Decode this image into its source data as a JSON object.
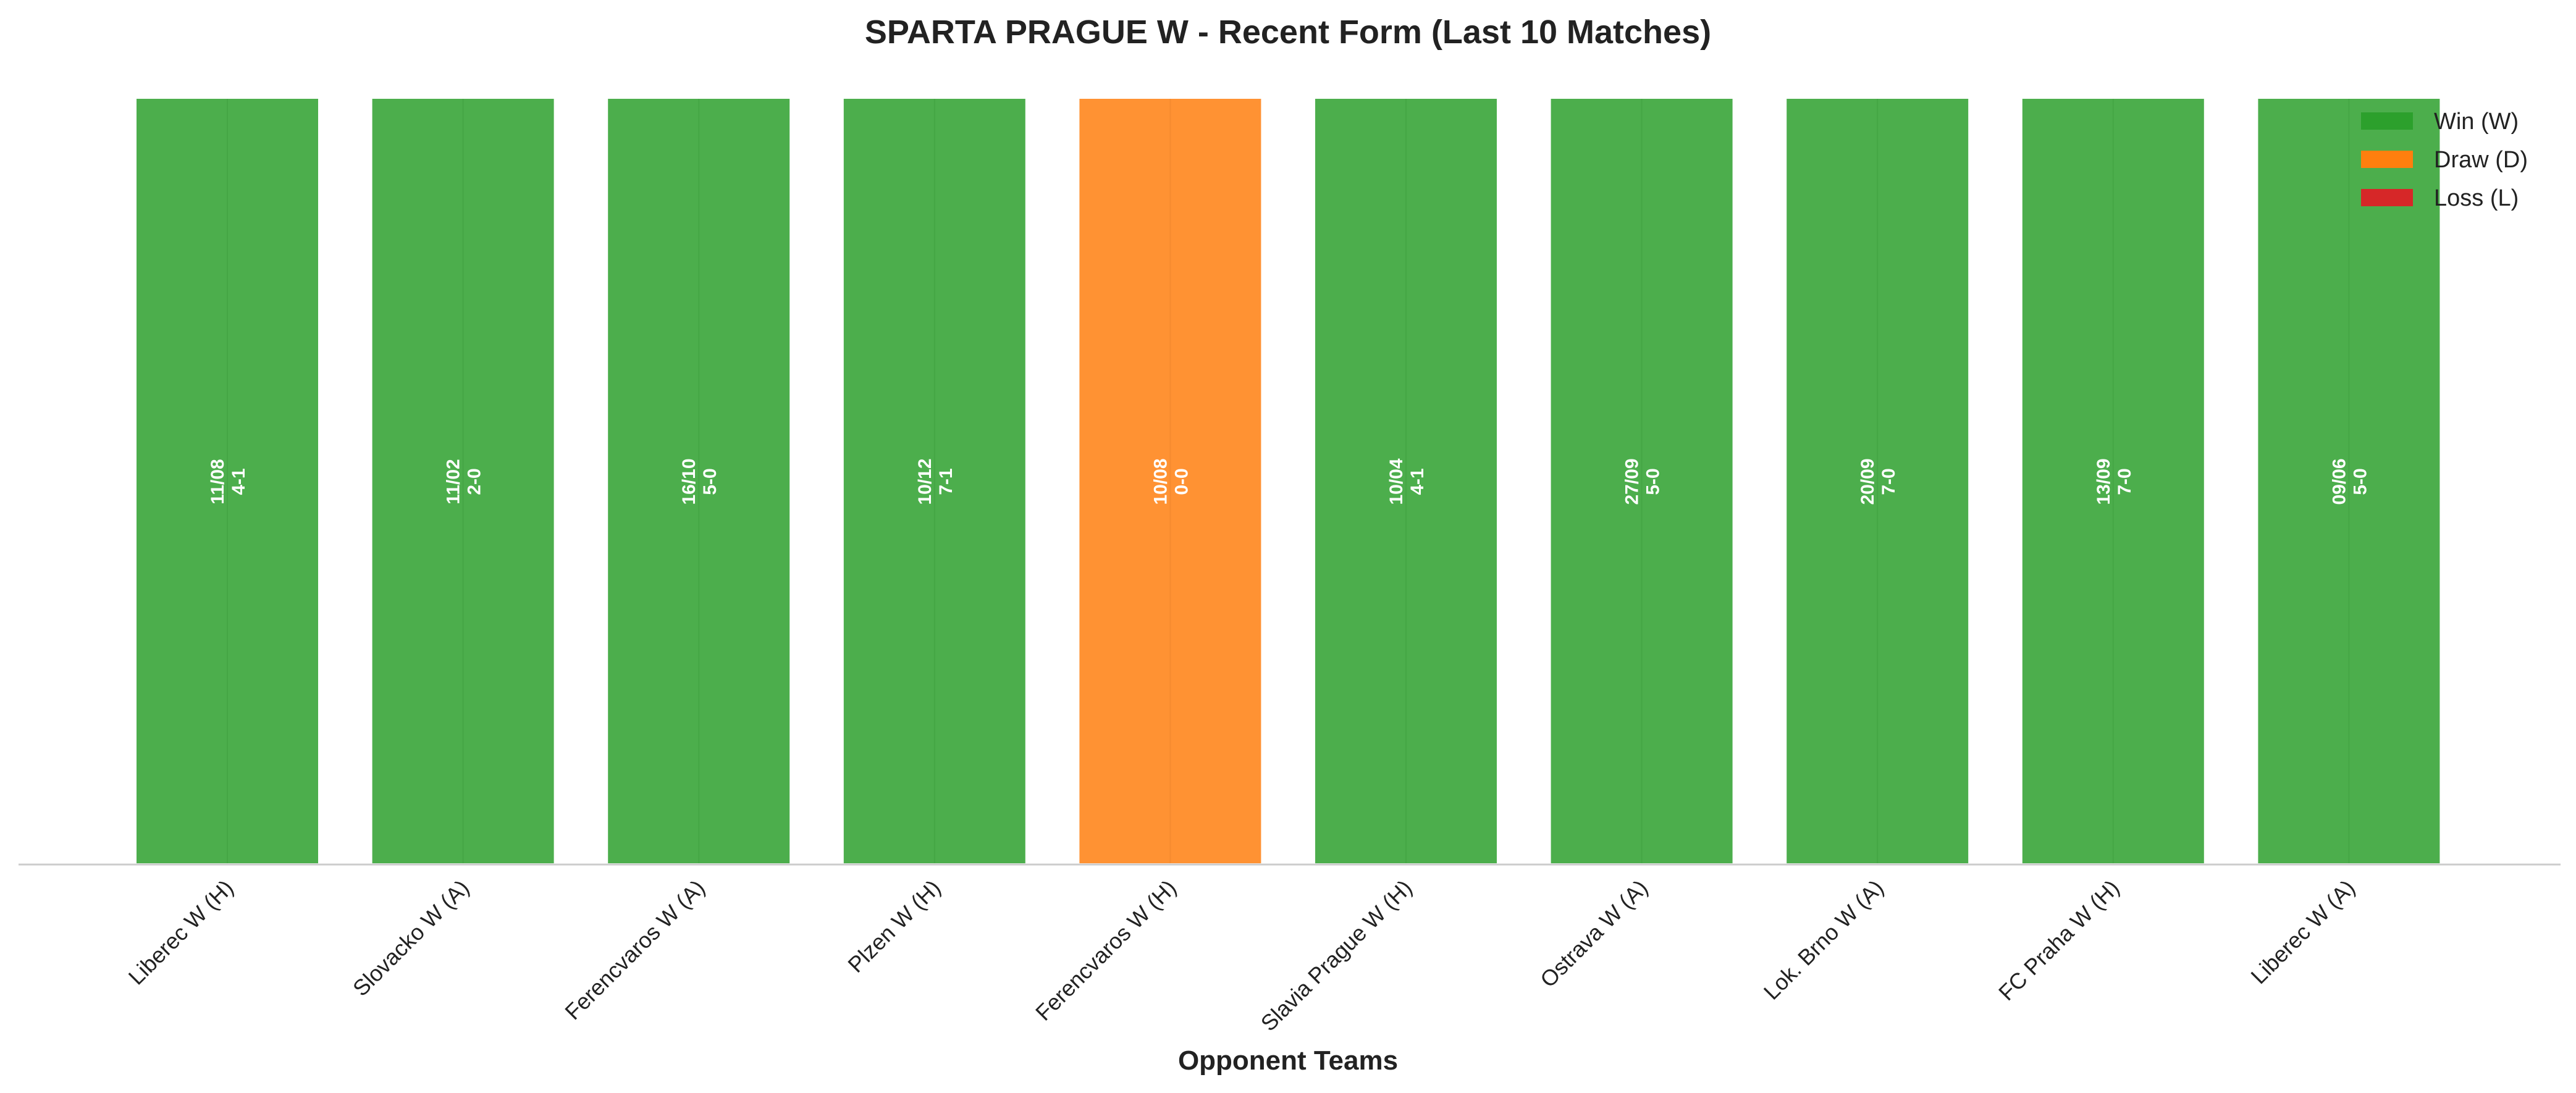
{
  "chart_data": {
    "type": "bar",
    "title": "SPARTA PRAGUE W - Recent Form (Last 10 Matches)",
    "xlabel": "Opponent Teams",
    "ylabel": "",
    "grid": false,
    "legend": {
      "placement": "top-right",
      "entries": [
        {
          "label": "Win (W)",
          "color": "#2ca02c"
        },
        {
          "label": "Draw (D)",
          "color": "#ff7f0e"
        },
        {
          "label": "Loss (L)",
          "color": "#d62728"
        }
      ]
    },
    "colors": {
      "W": "#4cae4c",
      "D": "#ff9233",
      "L": "#d62728"
    },
    "categories": [
      "Liberec W (H)",
      "Slovacko W (A)",
      "Ferencvaros W (A)",
      "Plzen W (H)",
      "Ferencvaros W (H)",
      "Slavia Prague W (H)",
      "Ostrava W (A)",
      "Lok. Brno W (A)",
      "FC Praha W (H)",
      "Liberec W (A)"
    ],
    "values": [
      1,
      1,
      1,
      1,
      1,
      1,
      1,
      1,
      1,
      1
    ],
    "results": [
      "W",
      "W",
      "W",
      "W",
      "D",
      "W",
      "W",
      "W",
      "W",
      "W"
    ],
    "dates": [
      "11/08",
      "11/02",
      "16/10",
      "10/12",
      "10/08",
      "10/04",
      "27/09",
      "20/09",
      "13/09",
      "09/06"
    ],
    "scores": [
      "4-1",
      "2-0",
      "5-0",
      "7-1",
      "0-0",
      "4-1",
      "5-0",
      "7-0",
      "7-0",
      "5-0"
    ]
  }
}
